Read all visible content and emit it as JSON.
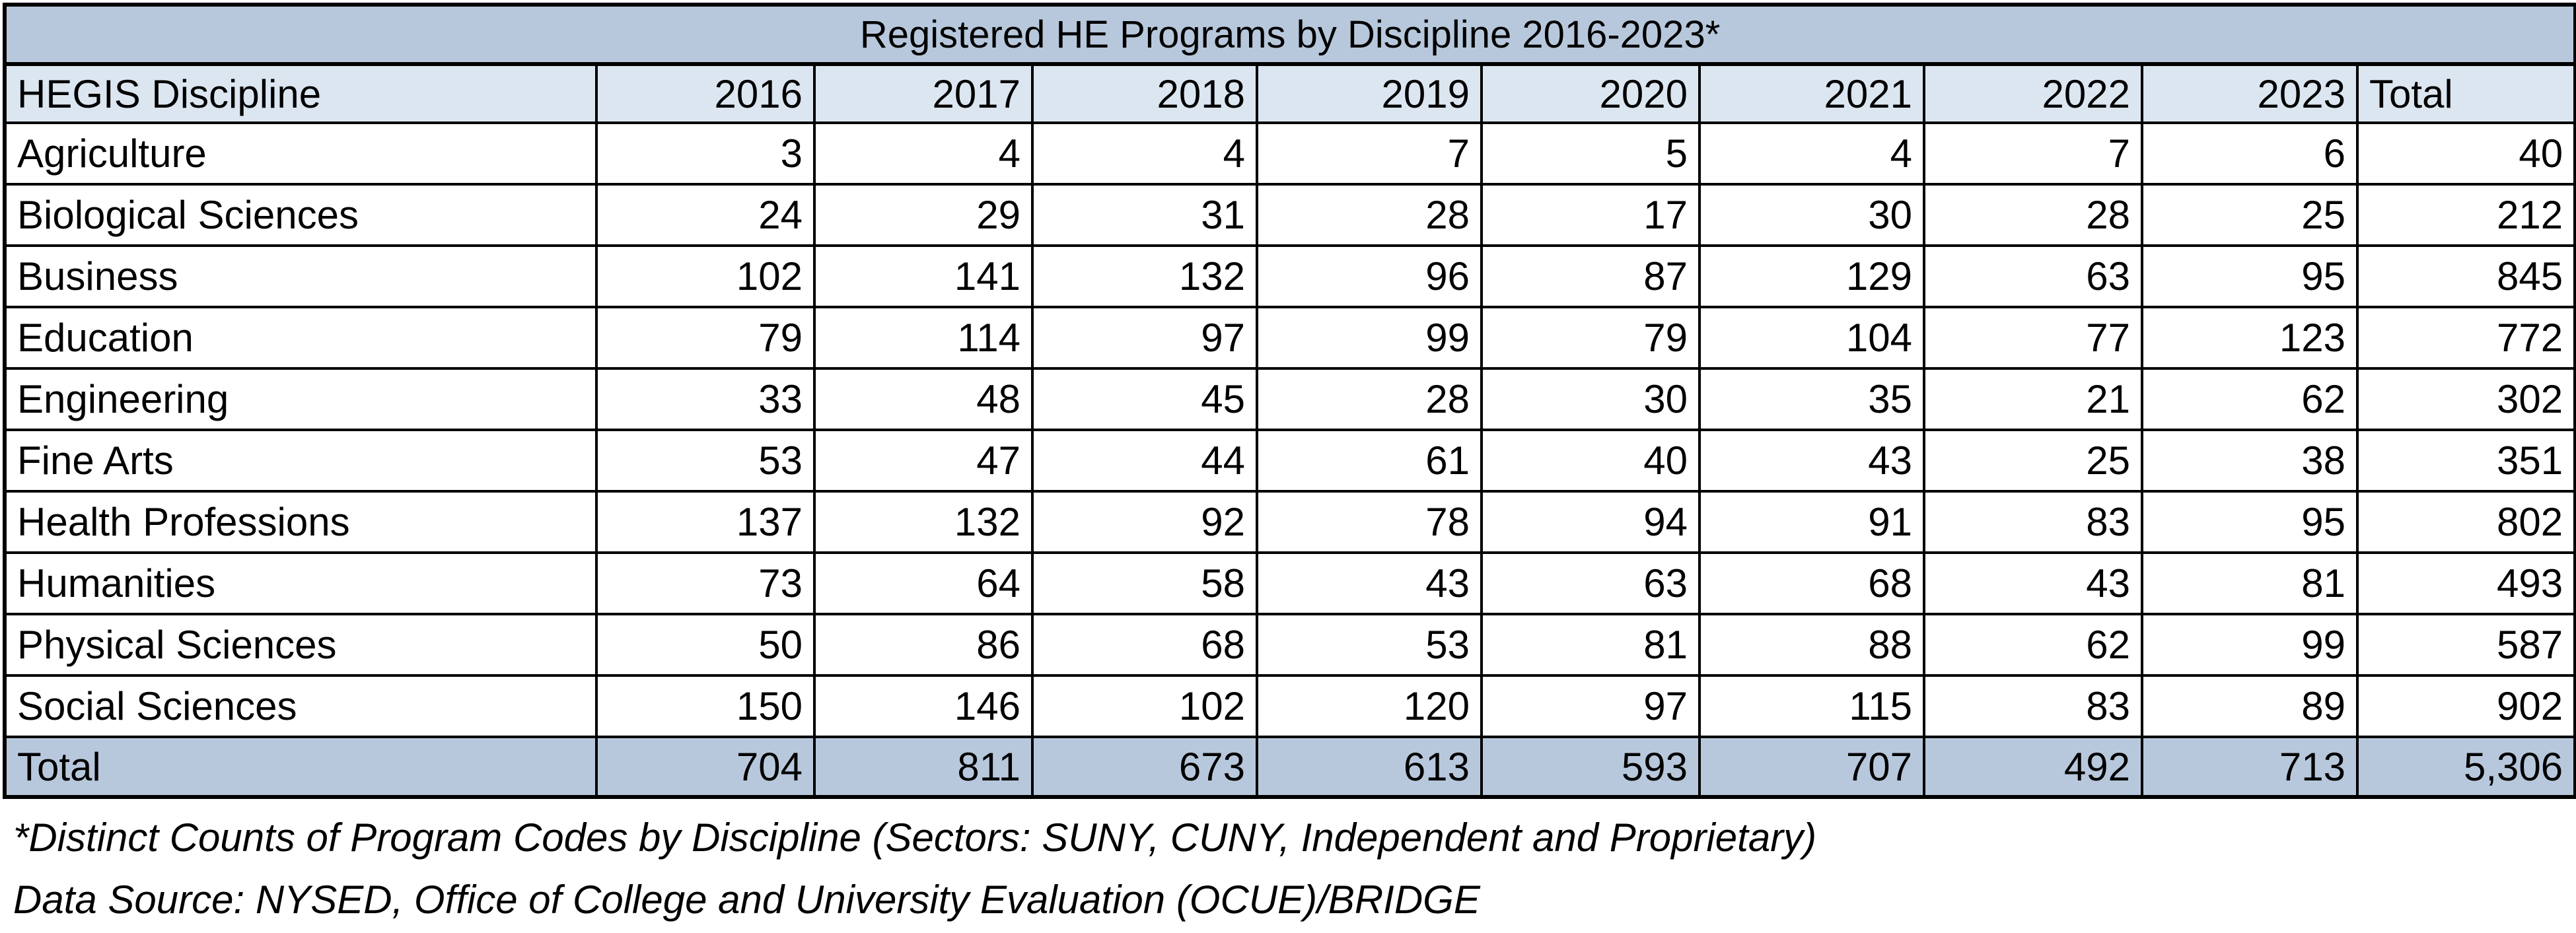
{
  "chart_data": {
    "type": "table",
    "title": "Registered HE Programs by Discipline 2016-2023*",
    "header_first": "HEGIS Discipline",
    "years": [
      "2016",
      "2017",
      "2018",
      "2019",
      "2020",
      "2021",
      "2022",
      "2023"
    ],
    "total_header": "Total",
    "rows": [
      {
        "discipline": "Agriculture",
        "values": [
          "3",
          "4",
          "4",
          "7",
          "5",
          "4",
          "7",
          "6"
        ],
        "total": "40"
      },
      {
        "discipline": "Biological Sciences",
        "values": [
          "24",
          "29",
          "31",
          "28",
          "17",
          "30",
          "28",
          "25"
        ],
        "total": "212"
      },
      {
        "discipline": "Business",
        "values": [
          "102",
          "141",
          "132",
          "96",
          "87",
          "129",
          "63",
          "95"
        ],
        "total": "845"
      },
      {
        "discipline": "Education",
        "values": [
          "79",
          "114",
          "97",
          "99",
          "79",
          "104",
          "77",
          "123"
        ],
        "total": "772"
      },
      {
        "discipline": "Engineering",
        "values": [
          "33",
          "48",
          "45",
          "28",
          "30",
          "35",
          "21",
          "62"
        ],
        "total": "302"
      },
      {
        "discipline": "Fine Arts",
        "values": [
          "53",
          "47",
          "44",
          "61",
          "40",
          "43",
          "25",
          "38"
        ],
        "total": "351"
      },
      {
        "discipline": "Health Professions",
        "values": [
          "137",
          "132",
          "92",
          "78",
          "94",
          "91",
          "83",
          "95"
        ],
        "total": "802"
      },
      {
        "discipline": "Humanities",
        "values": [
          "73",
          "64",
          "58",
          "43",
          "63",
          "68",
          "43",
          "81"
        ],
        "total": "493"
      },
      {
        "discipline": "Physical Sciences",
        "values": [
          "50",
          "86",
          "68",
          "53",
          "81",
          "88",
          "62",
          "99"
        ],
        "total": "587"
      },
      {
        "discipline": "Social Sciences",
        "values": [
          "150",
          "146",
          "102",
          "120",
          "97",
          "115",
          "83",
          "89"
        ],
        "total": "902"
      }
    ],
    "total_row": {
      "label": "Total",
      "values": [
        "704",
        "811",
        "673",
        "613",
        "593",
        "707",
        "492",
        "713"
      ],
      "total": "5,306"
    }
  },
  "notes": {
    "line1": "*Distinct Counts of Program Codes by Discipline (Sectors: SUNY, CUNY, Independent and Proprietary)",
    "line2": "Data Source: NYSED, Office of College and University Evaluation (OCUE)/BRIDGE"
  },
  "colors": {
    "title_bg": "#b8c8dc",
    "header_bg": "#dce6f1",
    "total_bg": "#b8c8dc"
  }
}
